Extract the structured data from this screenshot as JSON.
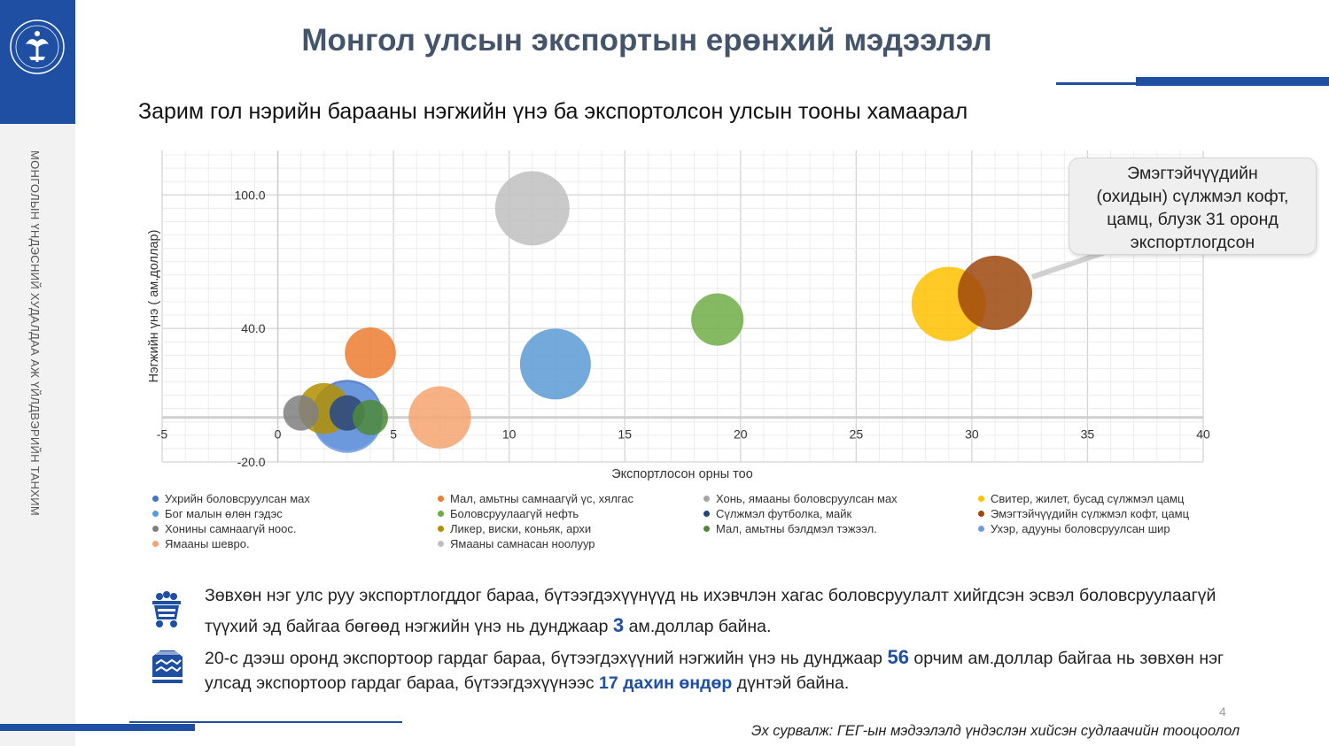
{
  "sidebar": {
    "vertical_text": "МОНГОЛЫН ҮНДЭСНИЙ ХУДАЛДАА АЖ ҮЙЛДВЭРИЙН ТАНХИМ"
  },
  "header": {
    "title": "Монгол улсын экспортын ерөнхий мэдээлэл"
  },
  "subtitle": "Зарим гол нэрийн барааны нэгжийн үнэ ба экспортолсон улсын тооны хамаарал",
  "callout": {
    "lines": [
      "Эмэгтэйчүүдийн",
      "(охидын) сүлжмэл кофт,",
      "цамц, блузк 31 оронд",
      "экспортлогдсон"
    ]
  },
  "chart_data": {
    "type": "bubble",
    "xlabel": "Экспортлосон орны тоо",
    "ylabel": "Нэгжийн үнэ ( ам.доллар)",
    "xlim": [
      -5,
      40
    ],
    "ylim": [
      -20,
      120
    ],
    "x_ticks": [
      -5,
      0,
      5,
      10,
      15,
      20,
      25,
      30,
      35,
      40
    ],
    "x_tick_labels": [
      "-5",
      "0",
      "5",
      "10",
      "15",
      "20",
      "25",
      "30",
      "35",
      "40"
    ],
    "y_ticks": [
      -20,
      40,
      100
    ],
    "y_tick_labels": [
      "-20.0",
      "40.0",
      "100.0"
    ],
    "grid": true,
    "legend_position": "bottom",
    "series": [
      {
        "name": "Ухрийн боловсруулсан мах",
        "color": "#4472c4",
        "x": 3,
        "y": 1,
        "size": 1
      },
      {
        "name": "Бог малын өлөн гэдэс",
        "color": "#5b9bd5",
        "x": 12,
        "y": 24,
        "size": 1.0
      },
      {
        "name": "Хонины самнаагүй ноос.",
        "color": "#7f7f7f",
        "x": 1,
        "y": 2,
        "size": 0.5
      },
      {
        "name": "Ямааны шевро.",
        "color": "#f4a36f",
        "x": 7,
        "y": 0,
        "size": 0.88
      },
      {
        "name": "Мал, амьтны самнаагүй үс, хялгас",
        "color": "#ed7d31",
        "x": 4,
        "y": 29,
        "size": 0.72
      },
      {
        "name": "Боловсруулаагүй нефть",
        "color": "#70ad47",
        "x": 19,
        "y": 44,
        "size": 0.74
      },
      {
        "name": "Ликер, виски, коньяк, архи",
        "color": "#b38f00",
        "x": 2,
        "y": 4,
        "size": 0.72
      },
      {
        "name": "Ямааны самнасан ноолуур",
        "color": "#bfbfbf",
        "x": 11,
        "y": 94,
        "size": 1.05
      },
      {
        "name": "Хонь, ямааны боловсруулсан мах",
        "color": "#a5a5a5",
        "x": 3,
        "y": 2,
        "size": 0.5
      },
      {
        "name": "Сүлжмэл футболка, майк",
        "color": "#264478",
        "x": 3,
        "y": 2,
        "size": 0.5
      },
      {
        "name": "Мал, амьтны бэлдмэл тэжээл.",
        "color": "#4f8a3a",
        "x": 4,
        "y": 0,
        "size": 0.5
      },
      {
        "name": "Свитер, жилет, бусад сүлжмэл цамц",
        "color": "#ffc000",
        "x": 29,
        "y": 51,
        "size": 1.05
      },
      {
        "name": "Эмэгтэйчүүдийн сүлжмэл кофт, цамц",
        "color": "#9e480e",
        "x": 31,
        "y": 56,
        "size": 1.05
      },
      {
        "name": "Ухэр, адууны боловсруулсан шир",
        "color": "#6f9be0",
        "x": 3,
        "y": 0,
        "size": 1.0
      }
    ]
  },
  "legend": [
    {
      "label": "Ухрийн боловсруулсан мах",
      "color": "#4472c4",
      "col": 0,
      "row": 0
    },
    {
      "label": "Бог малын өлөн гэдэс",
      "color": "#5b9bd5",
      "col": 0,
      "row": 1
    },
    {
      "label": "Хонины самнаагүй ноос.",
      "color": "#7f7f7f",
      "col": 0,
      "row": 2
    },
    {
      "label": "Ямааны шевро.",
      "color": "#f4a36f",
      "col": 0,
      "row": 3
    },
    {
      "label": "Мал, амьтны самнаагүй үс, хялгас",
      "color": "#ed7d31",
      "col": 1,
      "row": 0
    },
    {
      "label": "Боловсруулаагүй нефть",
      "color": "#70ad47",
      "col": 1,
      "row": 1
    },
    {
      "label": "Ликер, виски, коньяк, архи",
      "color": "#b38f00",
      "col": 1,
      "row": 2
    },
    {
      "label": "Ямааны самнасан ноолуур",
      "color": "#bfbfbf",
      "col": 1,
      "row": 3
    },
    {
      "label": "Хонь, ямааны боловсруулсан мах",
      "color": "#a5a5a5",
      "col": 2,
      "row": 0
    },
    {
      "label": "Сүлжмэл футболка, майк",
      "color": "#264478",
      "col": 2,
      "row": 1
    },
    {
      "label": "Мал, амьтны бэлдмэл тэжээл.",
      "color": "#4f8a3a",
      "col": 2,
      "row": 2
    },
    {
      "label": "Свитер, жилет, бусад сүлжмэл цамц",
      "color": "#ffc000",
      "col": 3,
      "row": 0
    },
    {
      "label": "Эмэгтэйчүүдийн сүлжмэл кофт, цамц",
      "color": "#9e480e",
      "col": 3,
      "row": 1
    },
    {
      "label": "Ухэр, адууны боловсруулсан шир",
      "color": "#6f9be0",
      "col": 3,
      "row": 2
    }
  ],
  "notes": {
    "note1": {
      "icon": "mine-cart-icon",
      "part1": "Зөвхөн нэг улс руу экспортлогддог бараа, бүтээгдэхүүнүүд нь ихэвчлэн хагас боловсруулалт хийгдсэн эсвэл боловсруулаагүй түүхий эд байгаа бөгөөд нэгжийн үнэ нь дунджаар ",
      "value": "3",
      "part2": " ам.доллар байна."
    },
    "note2": {
      "icon": "sweater-icon",
      "part1": "20-с дээш оронд экспортоор гардаг бараа, бүтээгдэхүүний нэгжийн үнэ нь дунджаар ",
      "value": "56",
      "part2": " орчим ам.доллар байгаа нь зөвхөн нэг улсад экспортоор гардаг бараа, бүтээгдэхүүнээс ",
      "value2": "17 дахин өндөр",
      "part3": " дүнтэй байна."
    }
  },
  "footer": {
    "page_number": "4",
    "source": "Эх сурвалж: ГЕГ-ын мэдээлэлд үндэслэн хийсэн судлаачийн тооцоолол"
  }
}
